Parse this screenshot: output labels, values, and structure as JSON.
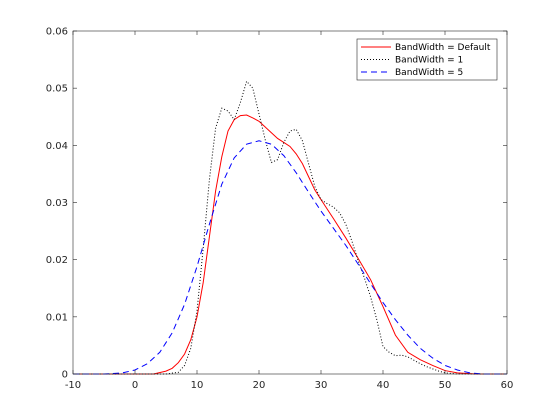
{
  "chart_data": {
    "type": "line",
    "title": "",
    "xlabel": "",
    "ylabel": "",
    "xlim": [
      -10,
      60
    ],
    "ylim": [
      0,
      0.06
    ],
    "xticks": [
      -10,
      0,
      10,
      20,
      30,
      40,
      50,
      60
    ],
    "yticks": [
      0,
      0.01,
      0.02,
      0.03,
      0.04,
      0.05,
      0.06
    ],
    "xtick_labels": [
      "-10",
      "0",
      "10",
      "20",
      "30",
      "40",
      "50",
      "60"
    ],
    "ytick_labels": [
      "0",
      "0.01",
      "0.02",
      "0.03",
      "0.04",
      "0.05",
      "0.06"
    ],
    "grid": false,
    "legend_position": "top-right",
    "series": [
      {
        "name": "BandWidth = Default",
        "color": "#ff0000",
        "style": "solid",
        "x": [
          -10,
          0,
          3,
          5,
          6,
          7,
          8,
          9,
          10,
          11,
          12,
          13,
          14,
          15,
          16,
          17,
          18,
          19,
          20,
          21,
          22,
          23,
          24,
          25,
          26,
          27,
          28,
          29,
          30,
          32,
          34,
          36,
          38,
          40,
          42,
          44,
          46,
          48,
          50,
          52,
          55,
          60
        ],
        "y": [
          0,
          0,
          0,
          0.0005,
          0.001,
          0.002,
          0.0035,
          0.006,
          0.01,
          0.016,
          0.024,
          0.032,
          0.038,
          0.0425,
          0.0445,
          0.0452,
          0.0453,
          0.0448,
          0.0442,
          0.0432,
          0.0422,
          0.0412,
          0.0405,
          0.0398,
          0.0385,
          0.0368,
          0.0345,
          0.0322,
          0.0305,
          0.0272,
          0.0238,
          0.0202,
          0.0165,
          0.0118,
          0.0068,
          0.0038,
          0.0025,
          0.0015,
          0.0006,
          0.0002,
          0,
          0
        ]
      },
      {
        "name": "BandWidth = 1",
        "color": "#000000",
        "style": "dotted",
        "x": [
          -10,
          0,
          5,
          7,
          8,
          9,
          10,
          11,
          12,
          13,
          14,
          15,
          16,
          17,
          18,
          19,
          20,
          21,
          22,
          23,
          24,
          25,
          26,
          27,
          28,
          29,
          30,
          31,
          32,
          33,
          34,
          35,
          36,
          37,
          38,
          39,
          40,
          41,
          42,
          43,
          44,
          45,
          46,
          47,
          48,
          49,
          50,
          52,
          55,
          60
        ],
        "y": [
          0,
          0,
          0,
          0.0003,
          0.0015,
          0.0045,
          0.011,
          0.022,
          0.034,
          0.043,
          0.0465,
          0.046,
          0.0445,
          0.0475,
          0.0512,
          0.05,
          0.0455,
          0.041,
          0.037,
          0.0375,
          0.0405,
          0.0425,
          0.0428,
          0.0408,
          0.0368,
          0.0328,
          0.0305,
          0.0298,
          0.0292,
          0.0282,
          0.0262,
          0.0232,
          0.0198,
          0.0168,
          0.0135,
          0.0095,
          0.0048,
          0.0038,
          0.0032,
          0.0033,
          0.003,
          0.0024,
          0.0018,
          0.0013,
          0.0009,
          0.0005,
          0.0002,
          0,
          0,
          0
        ]
      },
      {
        "name": "BandWidth = 5",
        "color": "#0000ff",
        "style": "dashed",
        "x": [
          -10,
          -5,
          -2,
          0,
          2,
          4,
          6,
          8,
          10,
          12,
          14,
          16,
          18,
          20,
          22,
          24,
          26,
          28,
          30,
          32,
          34,
          36,
          38,
          40,
          42,
          44,
          46,
          48,
          50,
          52,
          54,
          56,
          60
        ],
        "y": [
          0,
          0,
          0.0002,
          0.0007,
          0.0018,
          0.0038,
          0.0072,
          0.0122,
          0.0188,
          0.0262,
          0.0332,
          0.0378,
          0.0402,
          0.0408,
          0.0402,
          0.0382,
          0.0352,
          0.0318,
          0.0285,
          0.0255,
          0.0225,
          0.0192,
          0.0158,
          0.0125,
          0.0095,
          0.0068,
          0.0045,
          0.0028,
          0.0015,
          0.0007,
          0.0002,
          0,
          0
        ]
      }
    ]
  }
}
